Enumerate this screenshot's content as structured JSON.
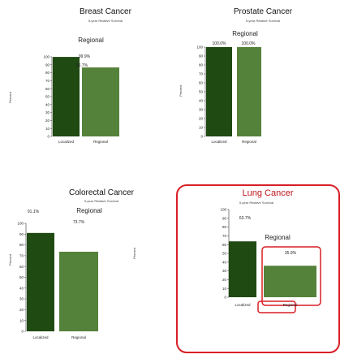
{
  "chart_data": [
    {
      "type": "bar",
      "title": "Breast Cancer",
      "subtitle": "5-year Relative Survival",
      "ylabel": "Percent",
      "ylim": [
        0,
        100
      ],
      "yticks": [
        "0",
        "10",
        "20",
        "30",
        "40",
        "50",
        "60",
        "70",
        "80",
        "90",
        "100"
      ],
      "categories": [
        "Localized",
        "Regional"
      ],
      "values": [
        99.9,
        86.7
      ],
      "value_labels": [
        "99.9%",
        "86.7%"
      ],
      "annotation": "Regional",
      "colors": [
        "#1f4a12",
        "#55823a"
      ]
    },
    {
      "type": "bar",
      "title": "Prostate Cancer",
      "subtitle": "5-year Relative Survival",
      "ylabel": "Percent",
      "ylim": [
        0,
        100
      ],
      "yticks": [
        "0",
        "10",
        "20",
        "30",
        "40",
        "50",
        "60",
        "70",
        "80",
        "90",
        "100"
      ],
      "categories": [
        "Localized",
        "Regional"
      ],
      "values": [
        100.0,
        100.0
      ],
      "value_labels": [
        "100.0%",
        "100.0%"
      ],
      "annotation": "Regional",
      "colors": [
        "#1f4a12",
        "#55823a"
      ]
    },
    {
      "type": "bar",
      "title": "Colorectal Cancer",
      "subtitle": "5-year Relative Survival",
      "ylabel": "Percent",
      "ylim": [
        0,
        100
      ],
      "yticks": [
        "0",
        "10",
        "20",
        "30",
        "40",
        "50",
        "60",
        "70",
        "80",
        "90",
        "100"
      ],
      "categories": [
        "Localized",
        "Regional"
      ],
      "values": [
        91.1,
        73.7
      ],
      "value_labels": [
        "91.1%",
        "73.7%"
      ],
      "annotation": "Regional",
      "colors": [
        "#1f4a12",
        "#55823a"
      ]
    },
    {
      "type": "bar",
      "title": "Lung Cancer",
      "subtitle": "5-year Relative Survival",
      "ylabel": "Percent",
      "ylim": [
        0,
        100
      ],
      "yticks": [
        "0",
        "10",
        "20",
        "30",
        "40",
        "50",
        "60",
        "70",
        "80",
        "90",
        "100"
      ],
      "categories": [
        "Localized",
        "Regional"
      ],
      "values": [
        63.7,
        35.9
      ],
      "value_labels": [
        "63.7%",
        "35.9%"
      ],
      "annotation": "Regional",
      "highlight_color": "#d81f26",
      "title_color": "#c0161d",
      "colors": [
        "#1f4a12",
        "#55823a"
      ]
    }
  ]
}
